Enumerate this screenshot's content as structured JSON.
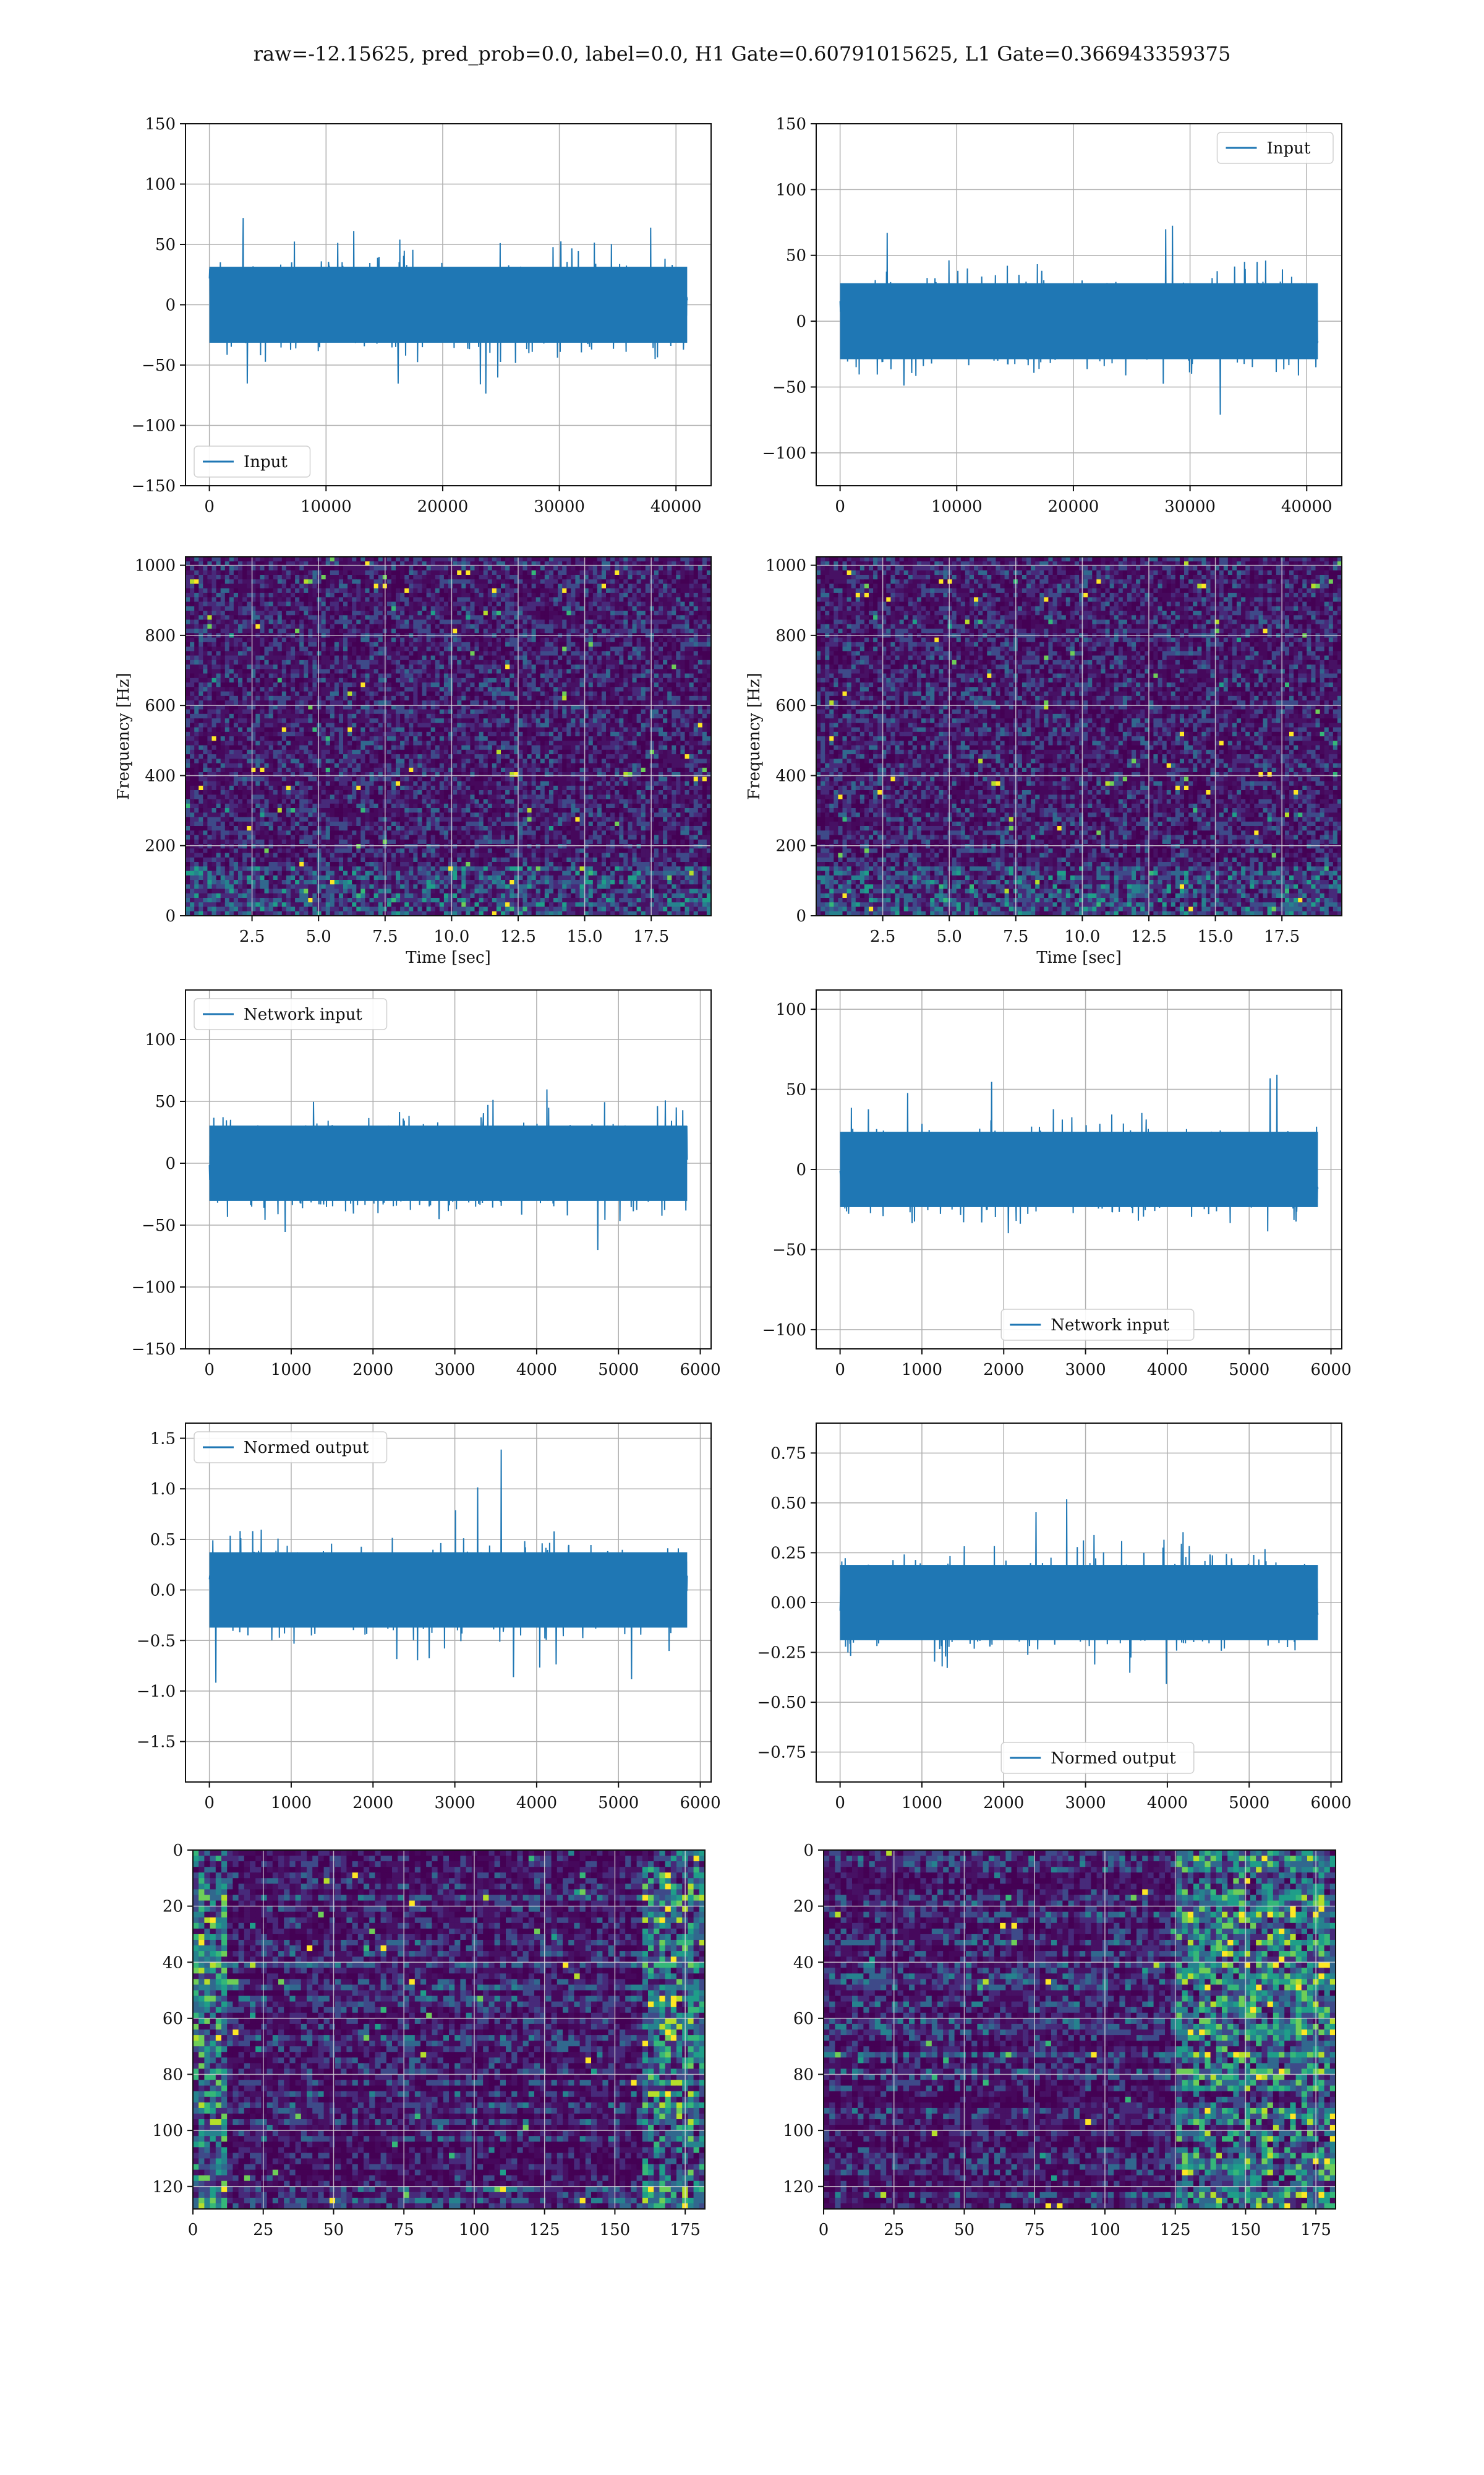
{
  "title": "raw=-12.15625, pred_prob=0.0, label=0.0, H1 Gate=0.60791015625, L1 Gate=0.366943359375",
  "colors": {
    "line": "#1f77b4",
    "grid": "#b0b0b0"
  },
  "chart_data": [
    {
      "id": "p1",
      "type": "line",
      "series": [
        {
          "name": "Input"
        }
      ],
      "legend": "lower-left",
      "x_range": [
        0,
        40960
      ],
      "yrange": [
        -150,
        150
      ],
      "xticks": [
        "0",
        "10000",
        "20000",
        "30000",
        "40000"
      ],
      "yticks": [
        "150",
        "100",
        "50",
        "0",
        "−50",
        "−100",
        "−150"
      ]
    },
    {
      "id": "p2",
      "type": "line",
      "series": [
        {
          "name": "Input"
        }
      ],
      "legend": "upper-right",
      "x_range": [
        0,
        40960
      ],
      "yrange": [
        -125,
        150
      ],
      "xticks": [
        "0",
        "10000",
        "20000",
        "30000",
        "40000"
      ],
      "yticks": [
        "150",
        "100",
        "50",
        "0",
        "−50",
        "−100"
      ]
    },
    {
      "id": "p3",
      "type": "heatmap",
      "xlabel": "Time [sec]",
      "ylabel": "Frequency [Hz]",
      "xticks": [
        "2.5",
        "5.0",
        "7.5",
        "10.0",
        "12.5",
        "15.0",
        "17.5"
      ],
      "yticks": [
        "1000",
        "800",
        "600",
        "400",
        "200",
        "0"
      ]
    },
    {
      "id": "p4",
      "type": "heatmap",
      "xlabel": "Time [sec]",
      "ylabel": "Frequency [Hz]",
      "xticks": [
        "2.5",
        "5.0",
        "7.5",
        "10.0",
        "12.5",
        "15.0",
        "17.5"
      ],
      "yticks": [
        "1000",
        "800",
        "600",
        "400",
        "200",
        "0"
      ]
    },
    {
      "id": "p5",
      "type": "line",
      "series": [
        {
          "name": "Network input"
        }
      ],
      "legend": "upper-left",
      "x_range": [
        0,
        5840
      ],
      "yrange": [
        -150,
        140
      ],
      "xticks": [
        "0",
        "1000",
        "2000",
        "3000",
        "4000",
        "5000",
        "6000"
      ],
      "yticks": [
        "100",
        "50",
        "0",
        "−50",
        "−100",
        "−150"
      ]
    },
    {
      "id": "p6",
      "type": "line",
      "series": [
        {
          "name": "Network input"
        }
      ],
      "legend": "lower-center",
      "x_range": [
        0,
        5840
      ],
      "yrange": [
        -112,
        112
      ],
      "xticks": [
        "0",
        "1000",
        "2000",
        "3000",
        "4000",
        "5000",
        "6000"
      ],
      "yticks": [
        "100",
        "50",
        "0",
        "−50",
        "−100"
      ]
    },
    {
      "id": "p7",
      "type": "line",
      "series": [
        {
          "name": "Normed output"
        }
      ],
      "legend": "upper-left",
      "x_range": [
        0,
        5840
      ],
      "yrange": [
        -1.9,
        1.65
      ],
      "xticks": [
        "0",
        "1000",
        "2000",
        "3000",
        "4000",
        "5000",
        "6000"
      ],
      "yticks": [
        "1.5",
        "1.0",
        "0.5",
        "0.0",
        "−0.5",
        "−1.0",
        "−1.5"
      ]
    },
    {
      "id": "p8",
      "type": "line",
      "series": [
        {
          "name": "Normed output"
        }
      ],
      "legend": "lower-center",
      "x_range": [
        0,
        5840
      ],
      "yrange": [
        -0.9,
        0.9
      ],
      "xticks": [
        "0",
        "1000",
        "2000",
        "3000",
        "4000",
        "5000",
        "6000"
      ],
      "yticks": [
        "0.75",
        "0.50",
        "0.25",
        "0.00",
        "−0.25",
        "−0.50",
        "−0.75"
      ]
    },
    {
      "id": "p9",
      "type": "heatmap",
      "xticks": [
        "0",
        "25",
        "50",
        "75",
        "100",
        "125",
        "150",
        "175"
      ],
      "yticks": [
        "0",
        "20",
        "40",
        "60",
        "80",
        "100",
        "120"
      ]
    },
    {
      "id": "p10",
      "type": "heatmap",
      "xticks": [
        "0",
        "25",
        "50",
        "75",
        "100",
        "125",
        "150",
        "175"
      ],
      "yticks": [
        "0",
        "20",
        "40",
        "60",
        "80",
        "100",
        "120"
      ]
    }
  ]
}
